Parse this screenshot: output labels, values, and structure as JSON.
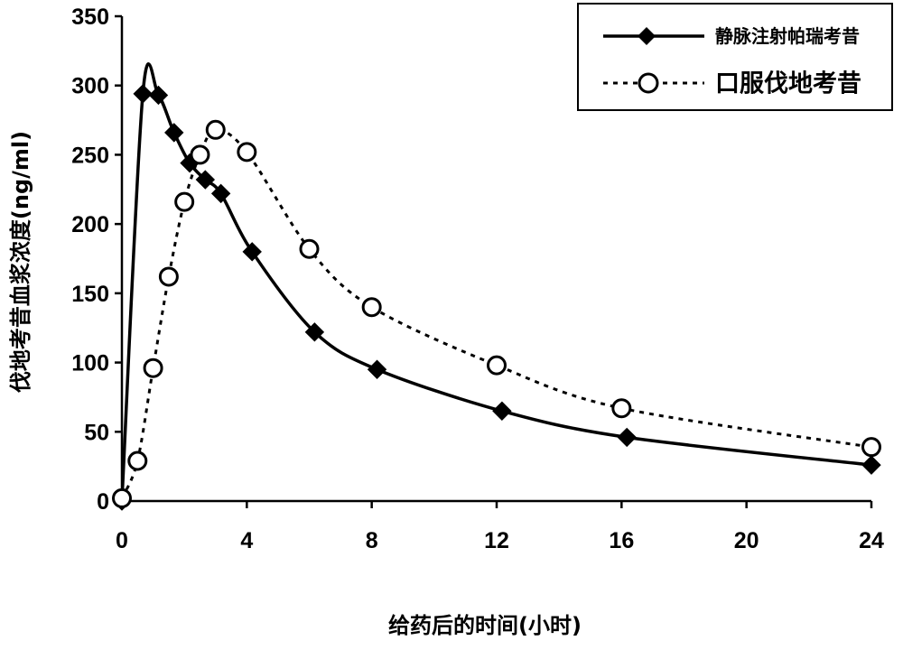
{
  "chart_data": {
    "type": "line",
    "title": "",
    "xlabel": "给药后的时间(小时)",
    "ylabel": "伐地考昔血浆浓度(ng/ml)",
    "xlim": [
      0,
      24
    ],
    "ylim": [
      0,
      350
    ],
    "x_ticks": [
      0,
      4,
      8,
      12,
      16,
      20,
      24
    ],
    "y_ticks": [
      0,
      50,
      100,
      150,
      200,
      250,
      300,
      350
    ],
    "grid": false,
    "legend_position": "top-right",
    "series": [
      {
        "name": "静脉注射帕瑞考昔",
        "style": "solid",
        "marker": "filled-diamond",
        "color": "#000000",
        "x": [
          0,
          0.67,
          1.17,
          1.67,
          2.17,
          2.67,
          3.17,
          4.17,
          6.17,
          8.17,
          12.17,
          16.17,
          24
        ],
        "y": [
          0,
          294,
          293,
          266,
          244,
          232,
          222,
          180,
          122,
          95,
          65,
          46,
          26
        ]
      },
      {
        "name": "口服伐地考昔",
        "style": "dotted",
        "marker": "open-circle",
        "color": "#000000",
        "x": [
          0,
          0.5,
          1.0,
          1.5,
          2.0,
          2.5,
          3.0,
          4.0,
          6.0,
          8.0,
          12.0,
          16.0,
          24.0
        ],
        "y": [
          2,
          29,
          96,
          162,
          216,
          250,
          268,
          252,
          182,
          140,
          98,
          67,
          39
        ]
      }
    ]
  }
}
